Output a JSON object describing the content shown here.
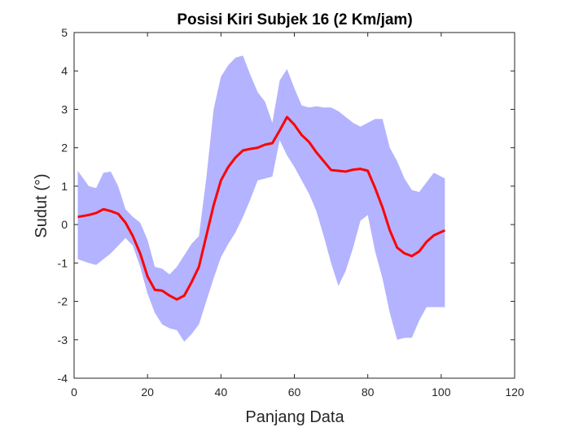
{
  "chart_data": {
    "type": "area",
    "title": "Posisi Kiri Subjek 16 (2 Km/jam)",
    "xlabel": "Panjang Data",
    "ylabel": "Sudut (°)",
    "xlim": [
      0,
      120
    ],
    "ylim": [
      -4,
      5
    ],
    "xticks": [
      0,
      20,
      40,
      60,
      80,
      100,
      120
    ],
    "yticks": [
      -4,
      -3,
      -2,
      -1,
      0,
      1,
      2,
      3,
      4,
      5
    ],
    "grid": false,
    "x": [
      1,
      4,
      6,
      8,
      10,
      12,
      14,
      16,
      18,
      20,
      22,
      24,
      26,
      28,
      30,
      32,
      34,
      36,
      38,
      40,
      42,
      44,
      46,
      48,
      50,
      52,
      54,
      56,
      58,
      60,
      62,
      64,
      66,
      68,
      70,
      72,
      74,
      76,
      78,
      80,
      82,
      84,
      86,
      88,
      90,
      92,
      94,
      96,
      98,
      101
    ],
    "series": [
      {
        "role": "mean",
        "color": "#ff0000",
        "values": [
          0.2,
          0.25,
          0.3,
          0.4,
          0.35,
          0.28,
          0.05,
          -0.3,
          -0.75,
          -1.35,
          -1.7,
          -1.72,
          -1.85,
          -1.95,
          -1.85,
          -1.5,
          -1.1,
          -0.3,
          0.5,
          1.15,
          1.5,
          1.75,
          1.93,
          1.97,
          2.0,
          2.08,
          2.12,
          2.45,
          2.8,
          2.6,
          2.33,
          2.15,
          1.88,
          1.65,
          1.42,
          1.4,
          1.38,
          1.43,
          1.45,
          1.4,
          0.95,
          0.45,
          -0.15,
          -0.6,
          -0.75,
          -0.82,
          -0.7,
          -0.45,
          -0.28,
          -0.15
        ]
      },
      {
        "role": "band-upper",
        "color": "#b3b3ff",
        "values": [
          1.4,
          1.0,
          0.95,
          1.35,
          1.38,
          1.0,
          0.4,
          0.2,
          0.05,
          -0.4,
          -1.1,
          -1.15,
          -1.3,
          -1.1,
          -0.8,
          -0.5,
          -0.3,
          1.2,
          3.0,
          3.85,
          4.15,
          4.35,
          4.4,
          3.9,
          3.45,
          3.2,
          2.65,
          3.75,
          4.05,
          3.55,
          3.1,
          3.05,
          3.08,
          3.05,
          3.05,
          2.95,
          2.8,
          2.65,
          2.55,
          2.65,
          2.75,
          2.75,
          2.0,
          1.65,
          1.2,
          0.9,
          0.85,
          1.1,
          1.35,
          1.2
        ]
      },
      {
        "role": "band-lower",
        "color": "#b3b3ff",
        "values": [
          -0.9,
          -1.0,
          -1.05,
          -0.9,
          -0.75,
          -0.55,
          -0.35,
          -0.55,
          -1.1,
          -1.8,
          -2.3,
          -2.6,
          -2.7,
          -2.75,
          -3.05,
          -2.85,
          -2.6,
          -2.0,
          -1.4,
          -0.85,
          -0.5,
          -0.2,
          0.2,
          0.65,
          1.15,
          1.2,
          1.25,
          2.2,
          1.8,
          1.5,
          1.15,
          0.8,
          0.35,
          -0.3,
          -1.0,
          -1.6,
          -1.2,
          -0.6,
          0.1,
          0.25,
          -0.7,
          -1.4,
          -2.3,
          -3.0,
          -2.95,
          -2.95,
          -2.5,
          -2.15,
          -2.15,
          -2.15
        ]
      }
    ]
  }
}
